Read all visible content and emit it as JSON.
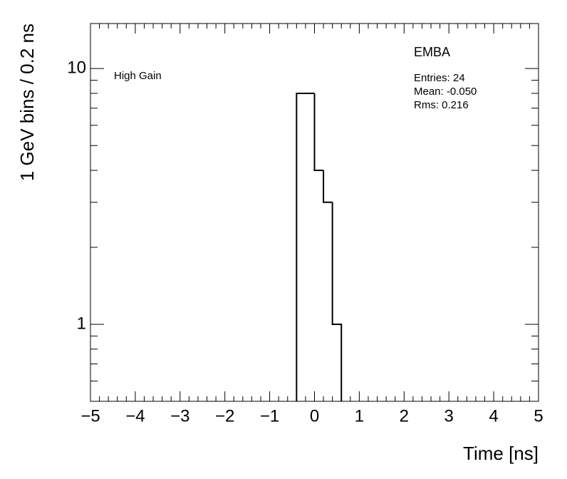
{
  "chart_data": {
    "type": "histogram",
    "title": "EMBA",
    "annotation": "High Gain",
    "stats": [
      "Entries: 24",
      "Mean: -0.050",
      "Rms: 0.216"
    ],
    "x_label": "Time [ns]",
    "y_label": "1 GeV bins / 0.2 ns",
    "bins": [
      -0.4,
      -0.2,
      0,
      0.2,
      0.4,
      0.6
    ],
    "values": [
      8,
      8,
      4,
      3,
      1
    ],
    "color": "#000000",
    "xlim": [
      -5,
      5
    ],
    "xticks": [
      {
        "value": -5,
        "label": "−5"
      },
      {
        "value": -4,
        "label": "−4"
      },
      {
        "value": -3,
        "label": "−3"
      },
      {
        "value": -2,
        "label": "−2"
      },
      {
        "value": -1,
        "label": "−1"
      },
      0,
      1,
      2,
      3,
      4,
      5
    ],
    "xminorticks": [
      -4.8,
      -4.6,
      -4.4,
      -4.2,
      -3.8,
      -3.6,
      -3.4,
      -3.2,
      -2.8,
      -2.6,
      -2.4,
      -2.2,
      -1.8,
      -1.6,
      -1.4,
      -1.2,
      -0.8,
      -0.6,
      -0.4,
      -0.2,
      0.2,
      0.4,
      0.6,
      0.8,
      1.2,
      1.4,
      1.6,
      1.8,
      2.2,
      2.4,
      2.6,
      2.8,
      3.2,
      3.4,
      3.6,
      3.8,
      4.2,
      4.4,
      4.6,
      4.8
    ],
    "ylim": [
      0.5,
      15
    ],
    "yscale": "log",
    "yticks": [
      1,
      10
    ],
    "yminorticks": [
      0.5,
      0.6,
      0.7,
      0.8,
      0.9,
      2,
      3,
      4,
      5,
      6,
      7,
      8,
      9
    ]
  }
}
